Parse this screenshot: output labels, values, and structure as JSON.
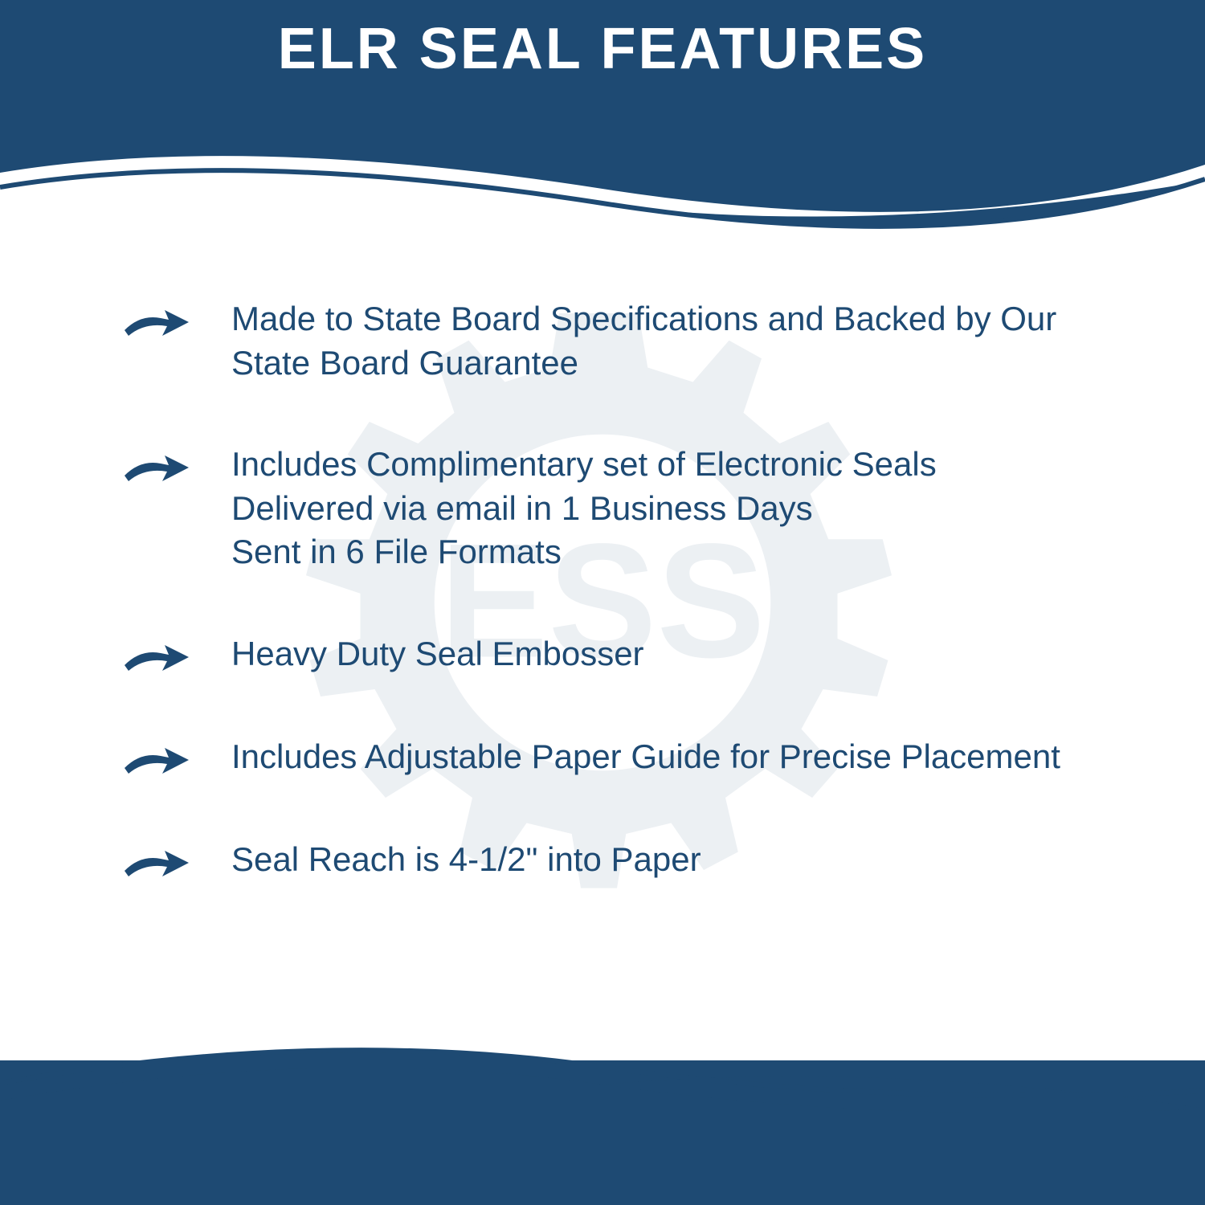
{
  "title": "ELR SEAL FEATURES",
  "colors": {
    "primary": "#1e4a73",
    "background": "#ffffff",
    "wave_light": "#ffffff",
    "watermark": "#e8ebed"
  },
  "watermark_text": "ESS",
  "features": [
    {
      "text": "Made to State Board Specifications and Backed by Our State Board Guarantee"
    },
    {
      "text": "Includes Complimentary set of Electronic Seals Delivered via email in 1 Business Days\nSent in 6 File Formats"
    },
    {
      "text": "Heavy Duty Seal Embosser"
    },
    {
      "text": "Includes Adjustable Paper Guide for Precise Placement"
    },
    {
      "text": "Seal Reach is 4-1/2\" into Paper"
    }
  ],
  "typography": {
    "title_fontsize": 72,
    "title_weight": 700,
    "feature_fontsize": 42,
    "feature_weight": 500
  }
}
